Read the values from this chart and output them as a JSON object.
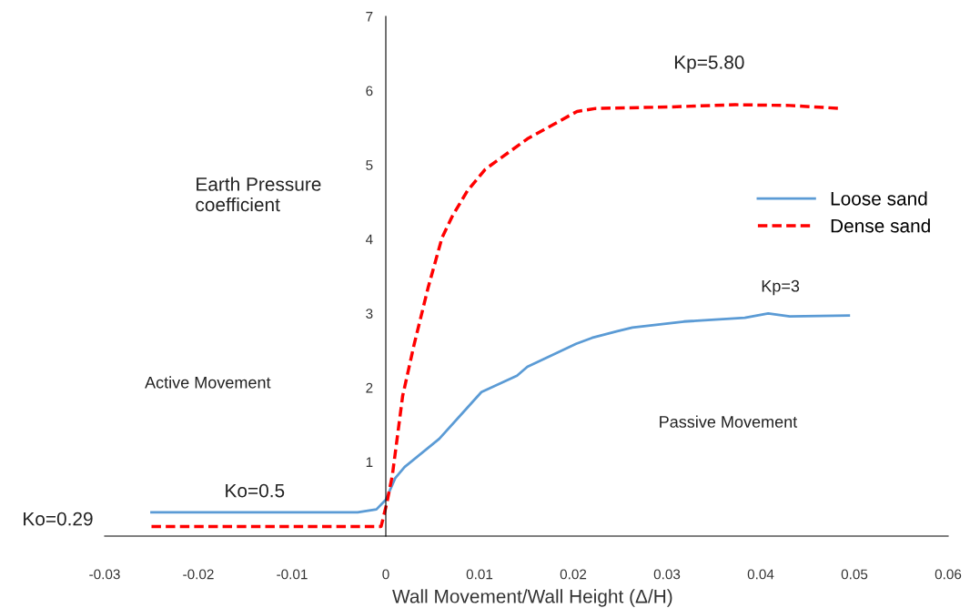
{
  "chart_data": {
    "type": "line",
    "xlabel": "Wall Movement/Wall Height (Δ/H)",
    "ylabel": "Earth Pressure\ncoefficient",
    "xlim": [
      -0.03,
      0.06
    ],
    "xticks": [
      -0.03,
      -0.02,
      -0.01,
      0,
      0.01,
      0.02,
      0.03,
      0.04,
      0.05,
      0.06
    ],
    "ylim": [
      0,
      7
    ],
    "yticks": [
      1,
      2,
      3,
      4,
      5,
      6,
      7
    ],
    "grid": false,
    "legend": "right",
    "marker": "none",
    "series": [
      {
        "name": "Loose sand",
        "color": "#5b9bd5",
        "line_style": "solid",
        "x": [
          -0.025,
          -0.003,
          -0.001,
          0,
          0.001,
          0.002,
          0.0057,
          0.0102,
          0.014,
          0.0151,
          0.0203,
          0.022,
          0.0247,
          0.0263,
          0.0318,
          0.0383,
          0.0408,
          0.0431,
          0.0494
        ],
        "values": [
          0.32,
          0.32,
          0.36,
          0.49,
          0.78,
          0.93,
          1.31,
          1.94,
          2.16,
          2.28,
          2.59,
          2.67,
          2.76,
          2.81,
          2.89,
          2.94,
          3.0,
          2.96,
          2.97
        ]
      },
      {
        "name": "Dense sand",
        "color": "#ff0000",
        "line_style": "dashed",
        "x": [
          -0.025,
          -0.0005,
          0.0001,
          0.0007,
          0.0018,
          0.003,
          0.0045,
          0.006,
          0.0071,
          0.0087,
          0.0106,
          0.0151,
          0.0204,
          0.0224,
          0.0302,
          0.0373,
          0.0431,
          0.0485
        ],
        "values": [
          0.13,
          0.13,
          0.44,
          0.82,
          1.89,
          2.57,
          3.34,
          4.02,
          4.31,
          4.65,
          4.94,
          5.35,
          5.72,
          5.76,
          5.78,
          5.81,
          5.8,
          5.76
        ]
      }
    ],
    "annotations": [
      "Kp=5.80",
      "Kp=3",
      "Ko=0.5",
      "Ko=0.29",
      "Active Movement",
      "Passive Movement"
    ]
  }
}
